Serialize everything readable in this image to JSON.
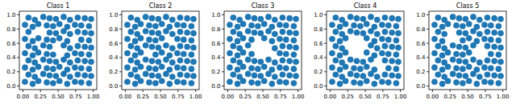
{
  "chart_data": [
    {
      "type": "scatter",
      "title": "Class 1",
      "color": "#1f77b4",
      "marker": "circle",
      "xlim": [
        -0.05,
        1.05
      ],
      "ylim": [
        -0.05,
        1.05
      ],
      "xticks": [
        {
          "value": 0,
          "label": "0.00"
        },
        {
          "value": 0.25,
          "label": "0.25"
        },
        {
          "value": 0.5,
          "label": "0.50"
        },
        {
          "value": 0.75,
          "label": "0.75"
        },
        {
          "value": 1,
          "label": "1.00"
        }
      ],
      "yticks": [
        {
          "value": 0,
          "label": "0.0"
        },
        {
          "value": 0.2,
          "label": "0.2"
        },
        {
          "value": 0.4,
          "label": "0.4"
        },
        {
          "value": 0.6,
          "label": "0.6"
        },
        {
          "value": 0.8,
          "label": "0.8"
        },
        {
          "value": 1,
          "label": "1.0"
        }
      ],
      "x": [
        0.03,
        0.14,
        0.22,
        0.34,
        0.43,
        0.52,
        0.63,
        0.74,
        0.83,
        0.94,
        0.08,
        0.17,
        0.29,
        0.38,
        0.47,
        0.58,
        0.67,
        0.78,
        0.88,
        0.97,
        0.03,
        0.14,
        0.22,
        0.34,
        0.43,
        0.52,
        0.63,
        0.74,
        0.83,
        0.94,
        0.08,
        0.17,
        0.29,
        0.38,
        0.47,
        0.58,
        0.67,
        0.78,
        0.88,
        0.97,
        0.03,
        0.14,
        0.22,
        0.34,
        0.43,
        0.63,
        0.74,
        0.83,
        0.94,
        0.08,
        0.17,
        0.29,
        0.38,
        0.58,
        0.67,
        0.78,
        0.88,
        0.97,
        0.03,
        0.14,
        0.22,
        0.34,
        0.43,
        0.52,
        0.63,
        0.83,
        0.94,
        0.08,
        0.38,
        0.47,
        0.58,
        0.67,
        0.78,
        0.88,
        0.97,
        0.03,
        0.14,
        0.22,
        0.34,
        0.43,
        0.52,
        0.63,
        0.74,
        0.83,
        0.94,
        0.08,
        0.17,
        0.29,
        0.38,
        0.47,
        0.58,
        0.67,
        0.78,
        0.88,
        0.97
      ],
      "values": [
        0.06,
        0.03,
        0.07,
        0.05,
        0.04,
        0.07,
        0.03,
        0.06,
        0.05,
        0.04,
        0.16,
        0.13,
        0.17,
        0.15,
        0.14,
        0.17,
        0.13,
        0.16,
        0.15,
        0.14,
        0.26,
        0.23,
        0.27,
        0.25,
        0.24,
        0.27,
        0.23,
        0.26,
        0.25,
        0.24,
        0.36,
        0.33,
        0.37,
        0.35,
        0.34,
        0.37,
        0.33,
        0.36,
        0.35,
        0.34,
        0.46,
        0.43,
        0.47,
        0.45,
        0.44,
        0.43,
        0.46,
        0.45,
        0.44,
        0.56,
        0.53,
        0.57,
        0.55,
        0.57,
        0.53,
        0.56,
        0.55,
        0.54,
        0.66,
        0.63,
        0.67,
        0.65,
        0.64,
        0.67,
        0.63,
        0.65,
        0.64,
        0.76,
        0.75,
        0.74,
        0.77,
        0.73,
        0.76,
        0.75,
        0.74,
        0.86,
        0.83,
        0.87,
        0.85,
        0.84,
        0.87,
        0.83,
        0.86,
        0.85,
        0.84,
        0.96,
        0.93,
        0.97,
        0.95,
        0.94,
        0.97,
        0.93,
        0.96,
        0.95,
        0.94
      ]
    },
    {
      "type": "scatter",
      "title": "Class 2",
      "color": "#1f77b4",
      "marker": "circle",
      "xlim": [
        -0.05,
        1.05
      ],
      "ylim": [
        -0.05,
        1.05
      ],
      "xticks": [
        {
          "value": 0,
          "label": "0.00"
        },
        {
          "value": 0.25,
          "label": "0.25"
        },
        {
          "value": 0.5,
          "label": "0.50"
        },
        {
          "value": 0.75,
          "label": "0.75"
        },
        {
          "value": 1,
          "label": "1.00"
        }
      ],
      "yticks": [
        {
          "value": 0,
          "label": "0.0"
        },
        {
          "value": 0.2,
          "label": "0.2"
        },
        {
          "value": 0.4,
          "label": "0.4"
        },
        {
          "value": 0.6,
          "label": "0.6"
        },
        {
          "value": 0.8,
          "label": "0.8"
        },
        {
          "value": 1,
          "label": "1.0"
        }
      ],
      "x": [
        0.03,
        0.14,
        0.22,
        0.34,
        0.43,
        0.52,
        0.63,
        0.74,
        0.83,
        0.94,
        0.08,
        0.17,
        0.29,
        0.38,
        0.47,
        0.58,
        0.67,
        0.78,
        0.88,
        0.97,
        0.03,
        0.14,
        0.22,
        0.34,
        0.43,
        0.52,
        0.63,
        0.74,
        0.83,
        0.94,
        0.08,
        0.17,
        0.29,
        0.38,
        0.47,
        0.58,
        0.67,
        0.78,
        0.88,
        0.97,
        0.03,
        0.14,
        0.22,
        0.43,
        0.52,
        0.63,
        0.74,
        0.83,
        0.94,
        0.08,
        0.17,
        0.29,
        0.38,
        0.47,
        0.58,
        0.67,
        0.78,
        0.88,
        0.97,
        0.03,
        0.14,
        0.22,
        0.34,
        0.43,
        0.52,
        0.74,
        0.83,
        0.94,
        0.08,
        0.17,
        0.29,
        0.38,
        0.47,
        0.58,
        0.67,
        0.78,
        0.88,
        0.97,
        0.03,
        0.14,
        0.22,
        0.34,
        0.43,
        0.52,
        0.63,
        0.74,
        0.83,
        0.94,
        0.08,
        0.17,
        0.29,
        0.38,
        0.47,
        0.58,
        0.67,
        0.78,
        0.88,
        0.97
      ],
      "values": [
        0.06,
        0.03,
        0.07,
        0.05,
        0.04,
        0.07,
        0.03,
        0.06,
        0.05,
        0.04,
        0.16,
        0.13,
        0.17,
        0.15,
        0.14,
        0.17,
        0.13,
        0.16,
        0.15,
        0.14,
        0.26,
        0.23,
        0.27,
        0.25,
        0.24,
        0.27,
        0.23,
        0.26,
        0.25,
        0.24,
        0.36,
        0.33,
        0.37,
        0.35,
        0.34,
        0.37,
        0.33,
        0.36,
        0.35,
        0.34,
        0.46,
        0.43,
        0.47,
        0.44,
        0.47,
        0.43,
        0.46,
        0.45,
        0.44,
        0.56,
        0.53,
        0.57,
        0.55,
        0.54,
        0.57,
        0.53,
        0.56,
        0.55,
        0.54,
        0.66,
        0.63,
        0.67,
        0.65,
        0.64,
        0.67,
        0.66,
        0.65,
        0.64,
        0.76,
        0.73,
        0.77,
        0.75,
        0.74,
        0.77,
        0.73,
        0.76,
        0.75,
        0.74,
        0.86,
        0.83,
        0.87,
        0.85,
        0.84,
        0.87,
        0.83,
        0.86,
        0.85,
        0.84,
        0.96,
        0.93,
        0.97,
        0.95,
        0.94,
        0.97,
        0.93,
        0.96,
        0.95,
        0.94
      ]
    },
    {
      "type": "scatter",
      "title": "Class 3",
      "color": "#1f77b4",
      "marker": "circle",
      "xlim": [
        -0.05,
        1.05
      ],
      "ylim": [
        -0.05,
        1.05
      ],
      "xticks": [
        {
          "value": 0,
          "label": "0.00"
        },
        {
          "value": 0.25,
          "label": "0.25"
        },
        {
          "value": 0.5,
          "label": "0.50"
        },
        {
          "value": 0.75,
          "label": "0.75"
        },
        {
          "value": 1,
          "label": "1.00"
        }
      ],
      "yticks": [
        {
          "value": 0,
          "label": "0.0"
        },
        {
          "value": 0.2,
          "label": "0.2"
        },
        {
          "value": 0.4,
          "label": "0.4"
        },
        {
          "value": 0.6,
          "label": "0.6"
        },
        {
          "value": 0.8,
          "label": "0.8"
        },
        {
          "value": 1,
          "label": "1.0"
        }
      ],
      "x": [
        0.03,
        0.14,
        0.22,
        0.34,
        0.43,
        0.52,
        0.63,
        0.74,
        0.83,
        0.94,
        0.08,
        0.17,
        0.29,
        0.38,
        0.47,
        0.58,
        0.67,
        0.78,
        0.88,
        0.97,
        0.03,
        0.14,
        0.22,
        0.34,
        0.43,
        0.52,
        0.63,
        0.74,
        0.83,
        0.94,
        0.08,
        0.17,
        0.29,
        0.38,
        0.47,
        0.58,
        0.67,
        0.78,
        0.88,
        0.97,
        0.03,
        0.14,
        0.22,
        0.34,
        0.74,
        0.83,
        0.94,
        0.08,
        0.17,
        0.29,
        0.67,
        0.78,
        0.88,
        0.97,
        0.03,
        0.14,
        0.22,
        0.34,
        0.52,
        0.63,
        0.74,
        0.83,
        0.94,
        0.08,
        0.17,
        0.29,
        0.38,
        0.47,
        0.58,
        0.67,
        0.78,
        0.88,
        0.97,
        0.03,
        0.14,
        0.22,
        0.34,
        0.43,
        0.52,
        0.63,
        0.74,
        0.83,
        0.94,
        0.08,
        0.17,
        0.29,
        0.38,
        0.47,
        0.58,
        0.67,
        0.78,
        0.88,
        0.97
      ],
      "values": [
        0.06,
        0.03,
        0.07,
        0.05,
        0.04,
        0.07,
        0.03,
        0.06,
        0.05,
        0.04,
        0.16,
        0.13,
        0.17,
        0.15,
        0.14,
        0.17,
        0.13,
        0.16,
        0.15,
        0.14,
        0.26,
        0.23,
        0.27,
        0.25,
        0.24,
        0.27,
        0.23,
        0.26,
        0.25,
        0.24,
        0.36,
        0.33,
        0.37,
        0.35,
        0.34,
        0.37,
        0.33,
        0.36,
        0.35,
        0.34,
        0.46,
        0.43,
        0.47,
        0.45,
        0.46,
        0.45,
        0.44,
        0.56,
        0.53,
        0.57,
        0.53,
        0.56,
        0.55,
        0.54,
        0.66,
        0.63,
        0.67,
        0.65,
        0.67,
        0.63,
        0.66,
        0.65,
        0.64,
        0.76,
        0.73,
        0.77,
        0.75,
        0.74,
        0.77,
        0.73,
        0.76,
        0.75,
        0.74,
        0.86,
        0.83,
        0.87,
        0.85,
        0.84,
        0.87,
        0.83,
        0.86,
        0.85,
        0.84,
        0.96,
        0.93,
        0.97,
        0.95,
        0.94,
        0.97,
        0.93,
        0.96,
        0.95,
        0.94
      ]
    },
    {
      "type": "scatter",
      "title": "Class 4",
      "color": "#1f77b4",
      "marker": "circle",
      "xlim": [
        -0.05,
        1.05
      ],
      "ylim": [
        -0.05,
        1.05
      ],
      "xticks": [
        {
          "value": 0,
          "label": "0.00"
        },
        {
          "value": 0.25,
          "label": "0.25"
        },
        {
          "value": 0.5,
          "label": "0.50"
        },
        {
          "value": 0.75,
          "label": "0.75"
        },
        {
          "value": 1,
          "label": "1.00"
        }
      ],
      "yticks": [
        {
          "value": 0,
          "label": "0.0"
        },
        {
          "value": 0.2,
          "label": "0.2"
        },
        {
          "value": 0.4,
          "label": "0.4"
        },
        {
          "value": 0.6,
          "label": "0.6"
        },
        {
          "value": 0.8,
          "label": "0.8"
        },
        {
          "value": 1,
          "label": "1.0"
        }
      ],
      "x": [
        0.03,
        0.14,
        0.22,
        0.34,
        0.43,
        0.52,
        0.63,
        0.74,
        0.83,
        0.94,
        0.08,
        0.17,
        0.29,
        0.38,
        0.47,
        0.58,
        0.67,
        0.78,
        0.88,
        0.97,
        0.03,
        0.14,
        0.22,
        0.34,
        0.43,
        0.52,
        0.63,
        0.83,
        0.94,
        0.08,
        0.17,
        0.29,
        0.38,
        0.47,
        0.58,
        0.78,
        0.88,
        0.97,
        0.03,
        0.14,
        0.22,
        0.52,
        0.63,
        0.74,
        0.83,
        0.94,
        0.08,
        0.17,
        0.58,
        0.67,
        0.78,
        0.88,
        0.97,
        0.03,
        0.14,
        0.22,
        0.52,
        0.63,
        0.74,
        0.83,
        0.94,
        0.08,
        0.17,
        0.29,
        0.38,
        0.47,
        0.58,
        0.67,
        0.78,
        0.88,
        0.97,
        0.03,
        0.14,
        0.22,
        0.34,
        0.43,
        0.52,
        0.63,
        0.74,
        0.83,
        0.94,
        0.08,
        0.17,
        0.29,
        0.38,
        0.47,
        0.58,
        0.67,
        0.78,
        0.88,
        0.97
      ],
      "values": [
        0.06,
        0.03,
        0.07,
        0.05,
        0.04,
        0.07,
        0.03,
        0.06,
        0.05,
        0.04,
        0.16,
        0.13,
        0.17,
        0.15,
        0.14,
        0.17,
        0.13,
        0.16,
        0.15,
        0.14,
        0.26,
        0.23,
        0.27,
        0.25,
        0.24,
        0.27,
        0.23,
        0.25,
        0.24,
        0.36,
        0.33,
        0.37,
        0.35,
        0.34,
        0.37,
        0.36,
        0.35,
        0.34,
        0.46,
        0.43,
        0.47,
        0.47,
        0.43,
        0.46,
        0.45,
        0.44,
        0.56,
        0.53,
        0.57,
        0.53,
        0.56,
        0.55,
        0.54,
        0.66,
        0.63,
        0.67,
        0.67,
        0.63,
        0.66,
        0.65,
        0.64,
        0.76,
        0.73,
        0.77,
        0.75,
        0.74,
        0.77,
        0.73,
        0.76,
        0.75,
        0.74,
        0.86,
        0.83,
        0.87,
        0.85,
        0.84,
        0.87,
        0.83,
        0.86,
        0.85,
        0.84,
        0.96,
        0.93,
        0.97,
        0.95,
        0.94,
        0.97,
        0.93,
        0.96,
        0.95,
        0.94
      ]
    },
    {
      "type": "scatter",
      "title": "Class 5",
      "color": "#1f77b4",
      "marker": "circle",
      "xlim": [
        -0.05,
        1.05
      ],
      "ylim": [
        -0.05,
        1.05
      ],
      "xticks": [
        {
          "value": 0,
          "label": "0.00"
        },
        {
          "value": 0.25,
          "label": "0.25"
        },
        {
          "value": 0.5,
          "label": "0.50"
        },
        {
          "value": 0.75,
          "label": "0.75"
        },
        {
          "value": 1,
          "label": "1.00"
        }
      ],
      "yticks": [
        {
          "value": 0,
          "label": "0.0"
        },
        {
          "value": 0.2,
          "label": "0.2"
        },
        {
          "value": 0.4,
          "label": "0.4"
        },
        {
          "value": 0.6,
          "label": "0.6"
        },
        {
          "value": 0.8,
          "label": "0.8"
        },
        {
          "value": 1,
          "label": "1.0"
        }
      ],
      "x": [
        0.03,
        0.14,
        0.22,
        0.34,
        0.43,
        0.52,
        0.63,
        0.74,
        0.83,
        0.94,
        0.08,
        0.17,
        0.29,
        0.38,
        0.47,
        0.58,
        0.67,
        0.78,
        0.88,
        0.97,
        0.03,
        0.14,
        0.22,
        0.34,
        0.43,
        0.52,
        0.63,
        0.74,
        0.83,
        0.94,
        0.08,
        0.17,
        0.29,
        0.38,
        0.47,
        0.58,
        0.67,
        0.78,
        0.88,
        0.97,
        0.03,
        0.14,
        0.22,
        0.34,
        0.43,
        0.52,
        0.83,
        0.94,
        0.08,
        0.17,
        0.29,
        0.38,
        0.47,
        0.58,
        0.78,
        0.88,
        0.97,
        0.03,
        0.14,
        0.43,
        0.52,
        0.63,
        0.74,
        0.83,
        0.94,
        0.08,
        0.17,
        0.38,
        0.47,
        0.58,
        0.67,
        0.78,
        0.88,
        0.97,
        0.03,
        0.14,
        0.22,
        0.34,
        0.43,
        0.52,
        0.63,
        0.74,
        0.83,
        0.94,
        0.08,
        0.17,
        0.29,
        0.38,
        0.47,
        0.58,
        0.67,
        0.78,
        0.88,
        0.97
      ],
      "values": [
        0.06,
        0.03,
        0.07,
        0.05,
        0.04,
        0.07,
        0.03,
        0.06,
        0.05,
        0.04,
        0.16,
        0.13,
        0.17,
        0.15,
        0.14,
        0.17,
        0.13,
        0.16,
        0.15,
        0.14,
        0.26,
        0.23,
        0.27,
        0.25,
        0.24,
        0.27,
        0.23,
        0.26,
        0.25,
        0.24,
        0.36,
        0.33,
        0.37,
        0.35,
        0.34,
        0.37,
        0.33,
        0.36,
        0.35,
        0.34,
        0.46,
        0.43,
        0.47,
        0.45,
        0.44,
        0.47,
        0.45,
        0.44,
        0.56,
        0.53,
        0.57,
        0.55,
        0.54,
        0.57,
        0.56,
        0.55,
        0.54,
        0.66,
        0.63,
        0.64,
        0.67,
        0.63,
        0.66,
        0.65,
        0.64,
        0.76,
        0.73,
        0.75,
        0.74,
        0.77,
        0.73,
        0.76,
        0.75,
        0.74,
        0.86,
        0.83,
        0.87,
        0.85,
        0.84,
        0.87,
        0.83,
        0.86,
        0.85,
        0.84,
        0.96,
        0.93,
        0.97,
        0.95,
        0.94,
        0.97,
        0.93,
        0.96,
        0.95,
        0.94
      ]
    }
  ]
}
